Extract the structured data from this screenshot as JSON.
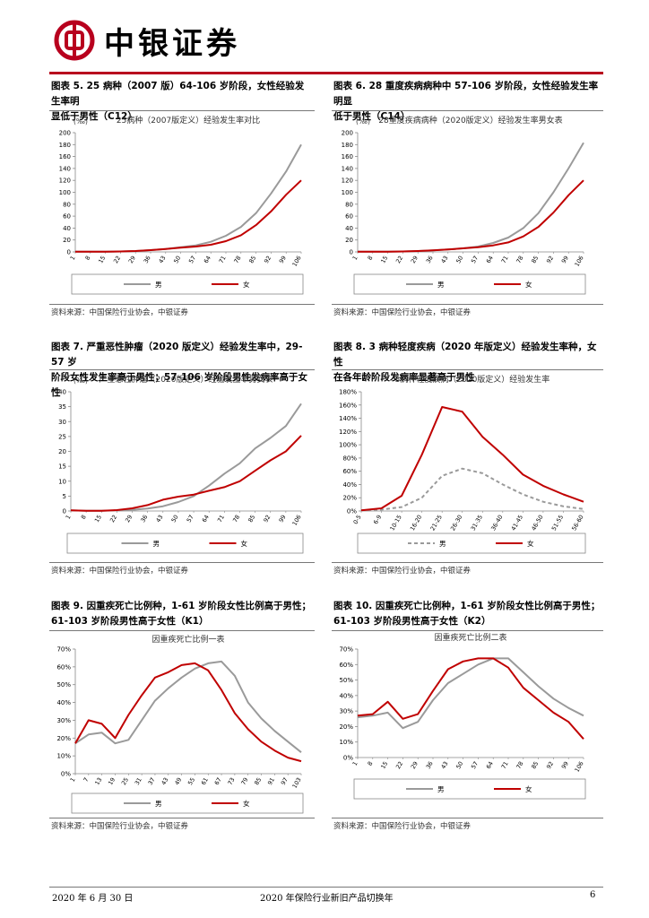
{
  "header": {
    "logo_text": "中银证券"
  },
  "footer": {
    "date": "2020 年 6 月 30 日",
    "title": "2020 年保险行业新旧产品切换年",
    "page": "6"
  },
  "colors": {
    "male": "#9a9a9a",
    "female": "#c00000",
    "brand": "#b8001e"
  },
  "figures": [
    {
      "caption_lines": [
        "图表 5. 25 病种（2007 版）64-106 岁阶段，女性经验发生率明",
        "显低于男性（C12）"
      ],
      "source": "资料来源：中国保险行业协会，中银证券",
      "chart_data": {
        "type": "line",
        "title": "25病种（2007版定义）经验发生率对比",
        "unit": "(‰)",
        "categories": [
          "1",
          "8",
          "15",
          "22",
          "29",
          "36",
          "43",
          "50",
          "57",
          "64",
          "71",
          "78",
          "85",
          "92",
          "99",
          "106"
        ],
        "ylim": [
          0,
          200
        ],
        "yticks": [
          0,
          20,
          40,
          60,
          80,
          100,
          120,
          140,
          160,
          180,
          200
        ],
        "ytick_format": "plain",
        "series": [
          {
            "name": "男",
            "color_key": "male",
            "dashed": false,
            "values": [
              0.5,
              0.5,
              0.5,
              0.8,
              1.5,
              3,
              5,
              8,
              11,
              17,
              27,
              42,
              65,
              98,
              135,
              180
            ]
          },
          {
            "name": "女",
            "color_key": "female",
            "dashed": false,
            "values": [
              0.5,
              0.5,
              0.5,
              0.8,
              1.5,
              3,
              5,
              7,
              9,
              12,
              18,
              28,
              45,
              68,
              96,
              120
            ]
          }
        ]
      }
    },
    {
      "caption_lines": [
        "图表 6. 28 重度疾病病种中 57-106 岁阶段，女性经验发生率明显",
        "低于男性（C14）"
      ],
      "source": "资料来源：中国保险行业协会，中银证券",
      "chart_data": {
        "type": "line",
        "title": "28重度疾病病种（2020版定义）经验发生率男女表",
        "unit": "(‰)",
        "categories": [
          "1",
          "8",
          "15",
          "22",
          "29",
          "36",
          "43",
          "50",
          "57",
          "64",
          "71",
          "78",
          "85",
          "92",
          "99",
          "106"
        ],
        "ylim": [
          0,
          200
        ],
        "yticks": [
          0,
          20,
          40,
          60,
          80,
          100,
          120,
          140,
          160,
          180,
          200
        ],
        "ytick_format": "plain",
        "series": [
          {
            "name": "男",
            "color_key": "male",
            "dashed": false,
            "values": [
              0.5,
              0.5,
              0.5,
              0.8,
              1.5,
              2.5,
              4,
              6,
              9,
              15,
              24,
              40,
              65,
              100,
              140,
              183
            ]
          },
          {
            "name": "女",
            "color_key": "female",
            "dashed": false,
            "values": [
              0.5,
              0.5,
              0.5,
              0.8,
              1.5,
              2.5,
              4,
              6,
              8,
              11,
              16,
              26,
              42,
              66,
              95,
              120
            ]
          }
        ]
      }
    },
    {
      "caption_lines": [
        "图表 7. 严重恶性肿瘤（2020 版定义）经验发生率中，29-57 岁",
        "阶段女性发生率高于男性；57-106 岁阶段男性发病率高于女性"
      ],
      "source": "资料来源：中国保险行业协会，中银证券",
      "chart_data": {
        "type": "line",
        "title": "严重恶性肿瘤（2020版定义）经验发生率男女表",
        "unit": "(‰)",
        "categories": [
          "1",
          "8",
          "15",
          "22",
          "29",
          "36",
          "43",
          "50",
          "57",
          "64",
          "71",
          "78",
          "85",
          "92",
          "99",
          "106"
        ],
        "ylim": [
          0,
          40
        ],
        "yticks": [
          0,
          5,
          10,
          15,
          20,
          25,
          30,
          35,
          40
        ],
        "ytick_format": "plain",
        "series": [
          {
            "name": "男",
            "color_key": "male",
            "dashed": false,
            "values": [
              0.2,
              0.1,
              0.1,
              0.2,
              0.4,
              0.8,
              1.6,
              3,
              5,
              8.5,
              12.5,
              16,
              21,
              24.5,
              28.5,
              36
            ]
          },
          {
            "name": "女",
            "color_key": "female",
            "dashed": false,
            "values": [
              0.2,
              0.1,
              0.1,
              0.3,
              0.9,
              2,
              3.8,
              4.8,
              5.5,
              6.8,
              8,
              10,
              13.5,
              17,
              20,
              25.3
            ]
          }
        ]
      }
    },
    {
      "caption_lines": [
        "图表 8. 3 病种轻度疾病（2020 年版定义）经验发生率种，女性",
        "在各年龄阶段发病率显著高于男性"
      ],
      "source": "资料来源：中国保险行业协会，中银证券",
      "chart_data": {
        "type": "line",
        "title": "3病种轻度疾病（2020版定义）经验发生率",
        "unit": "",
        "categories": [
          "0-5",
          "6-9",
          "10-15",
          "16-20",
          "21-25",
          "26-30",
          "31-35",
          "36-40",
          "41-45",
          "46-50",
          "51-55",
          "56-60"
        ],
        "ylim": [
          0,
          180
        ],
        "yticks": [
          0,
          20,
          40,
          60,
          80,
          100,
          120,
          140,
          160,
          180
        ],
        "ytick_format": "percent",
        "series": [
          {
            "name": "男",
            "color_key": "male",
            "dashed": true,
            "values": [
              1,
              2,
              6,
              20,
              53,
              64,
              57,
              40,
              25,
              14,
              7,
              3
            ]
          },
          {
            "name": "女",
            "color_key": "female",
            "dashed": false,
            "values": [
              1,
              4,
              23,
              85,
              157,
              150,
              112,
              85,
              55,
              38,
              25,
              14
            ]
          }
        ]
      }
    },
    {
      "caption_lines": [
        "图表 9. 因重疾死亡比例种，1-61 岁阶段女性比例高于男性；",
        "61-103 岁阶段男性高于女性（K1）"
      ],
      "source": "资料来源：中国保险行业协会，中银证券",
      "chart_data": {
        "type": "line",
        "title": "因重疾死亡比例一表",
        "unit": "",
        "categories": [
          "1",
          "7",
          "13",
          "19",
          "25",
          "31",
          "37",
          "43",
          "49",
          "55",
          "61",
          "67",
          "73",
          "79",
          "85",
          "91",
          "97",
          "103"
        ],
        "ylim": [
          0,
          70
        ],
        "yticks": [
          0,
          10,
          20,
          30,
          40,
          50,
          60,
          70
        ],
        "ytick_format": "percent",
        "series": [
          {
            "name": "男",
            "color_key": "male",
            "dashed": false,
            "values": [
              17,
              22,
              23,
              17,
              19,
              30,
              41,
              48,
              54,
              59,
              62,
              63,
              55,
              40,
              31,
              24,
              18,
              12
            ]
          },
          {
            "name": "女",
            "color_key": "female",
            "dashed": false,
            "values": [
              17,
              30,
              28,
              20,
              33,
              44,
              54,
              57,
              61,
              62,
              58,
              47,
              34,
              25,
              18,
              13,
              9,
              7
            ]
          }
        ]
      }
    },
    {
      "caption_lines": [
        "图表 10. 因重疾死亡比例种，1-61 岁阶段女性比例高于男性；",
        "61-103 岁阶段男性高于女性（K2）"
      ],
      "source": "资料来源：中国保险行业协会，中银证券",
      "chart_data": {
        "type": "line",
        "title": "因重疾死亡比例二表",
        "unit": "",
        "categories": [
          "1",
          "8",
          "15",
          "22",
          "29",
          "36",
          "43",
          "50",
          "57",
          "64",
          "71",
          "78",
          "85",
          "92",
          "99",
          "106"
        ],
        "ylim": [
          0,
          70
        ],
        "yticks": [
          0,
          10,
          20,
          30,
          40,
          50,
          60,
          70
        ],
        "ytick_format": "percent",
        "series": [
          {
            "name": "男",
            "color_key": "male",
            "dashed": false,
            "values": [
              26,
              27,
              29,
              19,
              23,
              37,
              48,
              54,
              60,
              64,
              64,
              55,
              46,
              38,
              32,
              27
            ]
          },
          {
            "name": "女",
            "color_key": "female",
            "dashed": false,
            "values": [
              27,
              28,
              36,
              25,
              28,
              43,
              57,
              62,
              64,
              64,
              58,
              45,
              37,
              29,
              23,
              12
            ]
          }
        ]
      }
    }
  ]
}
